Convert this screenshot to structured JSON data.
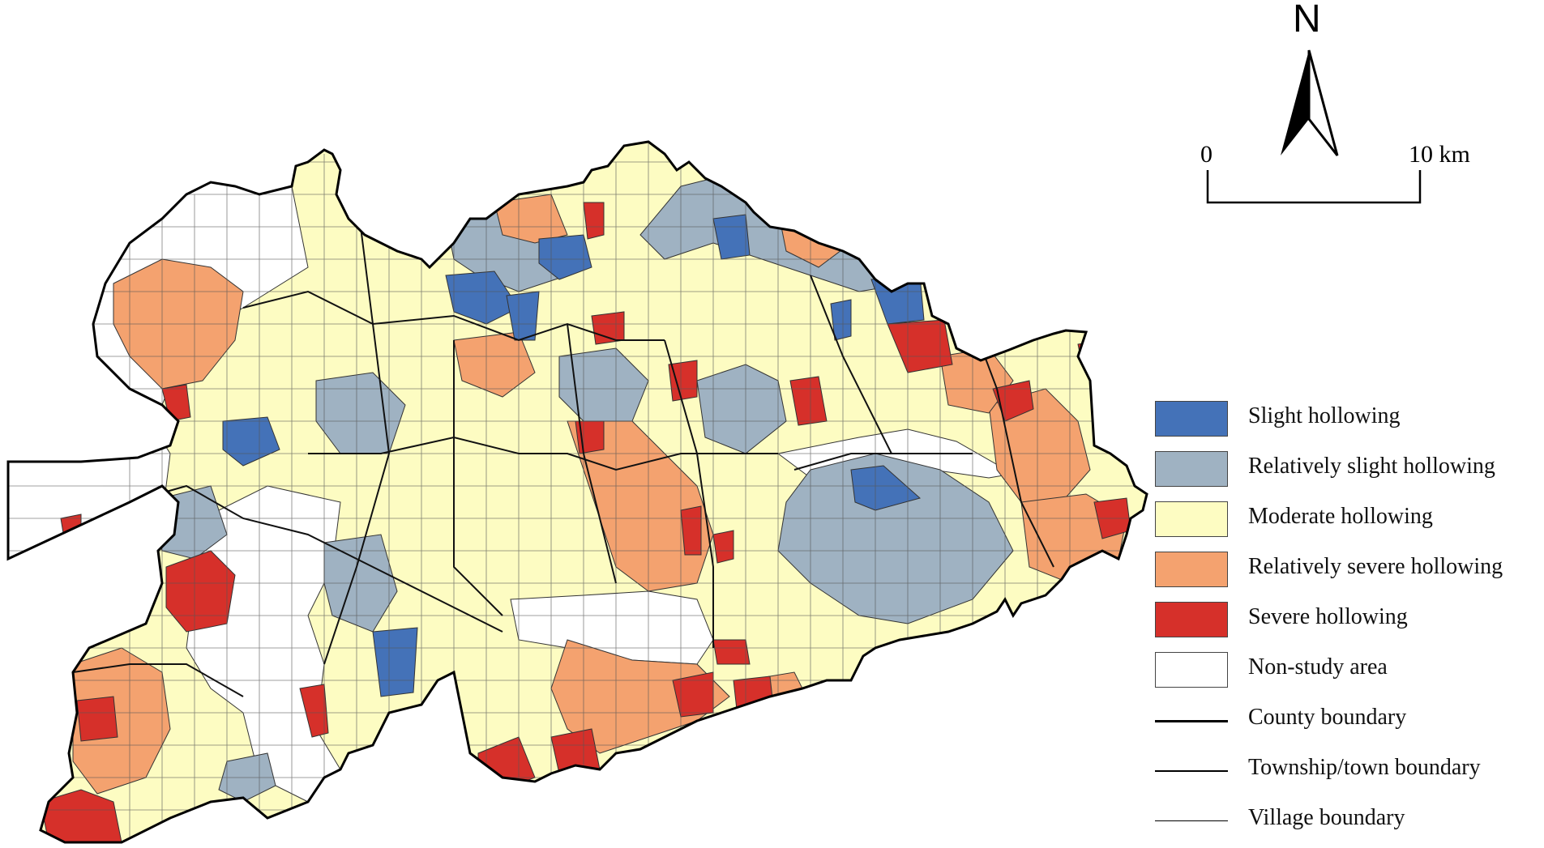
{
  "north_arrow": {
    "letter": "N"
  },
  "scale_bar": {
    "start_label": "0",
    "end_label": "10 km"
  },
  "legend": {
    "items": [
      {
        "label": "Slight hollowing",
        "color": "#4472b8",
        "kind": "fill"
      },
      {
        "label": "Relatively slight hollowing",
        "color": "#9fb2c2",
        "kind": "fill"
      },
      {
        "label": "Moderate hollowing",
        "color": "#fdfcc2",
        "kind": "fill"
      },
      {
        "label": "Relatively severe hollowing",
        "color": "#f4a26f",
        "kind": "fill"
      },
      {
        "label": "Severe hollowing",
        "color": "#d6302a",
        "kind": "fill"
      },
      {
        "label": "Non-study area",
        "color": "#ffffff",
        "kind": "fill"
      },
      {
        "label": "County boundary",
        "color": "#000000",
        "kind": "line-thick"
      },
      {
        "label": "Township/town boundary",
        "color": "#000000",
        "kind": "line-medium"
      },
      {
        "label": "Village boundary",
        "color": "#000000",
        "kind": "line-thin"
      }
    ]
  }
}
